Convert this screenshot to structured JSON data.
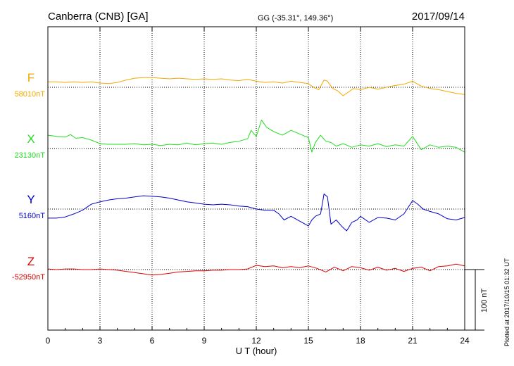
{
  "header": {
    "station": "Canberra (CNB)  [GA]",
    "coords": "GG (-35.31°, 149.36°)",
    "date": "2017/09/14"
  },
  "footer": {
    "plotted": "Plotted at 2017/10/15 01:32 UT"
  },
  "chart_data": {
    "type": "line",
    "title": "",
    "xlabel": "U T (hour)",
    "ylabel": "",
    "xlim": [
      0,
      24
    ],
    "xticks": [
      0,
      3,
      6,
      9,
      12,
      15,
      18,
      21,
      24
    ],
    "xtick_labels": [
      "0",
      "3",
      "6",
      "9",
      "12",
      "15",
      "18",
      "21",
      "24"
    ],
    "grid": true,
    "scale_bar": {
      "label": "100 nT",
      "value_nT": 100
    },
    "series": [
      {
        "name": "F",
        "baseline_label": "58010nT",
        "baseline_nT": 58010,
        "color": "#f5a800",
        "x": [
          0,
          0.5,
          1,
          1.5,
          2,
          2.5,
          3,
          3.5,
          4,
          4.5,
          5,
          5.5,
          6,
          6.5,
          7,
          7.5,
          8,
          8.5,
          9,
          9.5,
          10,
          10.5,
          11,
          11.5,
          12,
          12.5,
          13,
          13.5,
          14,
          14.5,
          15,
          15.3,
          15.6,
          15.9,
          16.1,
          16.4,
          16.7,
          17,
          17.3,
          17.6,
          18,
          18.5,
          19,
          19.5,
          20,
          20.5,
          21,
          21.5,
          22,
          22.5,
          23,
          23.5,
          24
        ],
        "y": [
          9,
          9,
          8,
          9,
          8,
          9,
          7,
          6,
          8,
          12,
          15,
          16,
          16,
          15,
          14,
          15,
          14,
          13,
          14,
          13,
          14,
          12,
          11,
          13,
          10,
          8,
          9,
          7,
          10,
          8,
          6,
          0,
          -4,
          12,
          10,
          -2,
          -6,
          -14,
          -8,
          -2,
          -4,
          0,
          -3,
          0,
          3,
          5,
          10,
          2,
          -2,
          -4,
          -7,
          -10,
          -12
        ]
      },
      {
        "name": "X",
        "baseline_label": "23130nT",
        "baseline_nT": 23130,
        "color": "#22dd22",
        "x": [
          0,
          0.5,
          1,
          1.3,
          1.6,
          2,
          2.5,
          3,
          3.5,
          4,
          4.5,
          5,
          5.5,
          6,
          6.5,
          7,
          7.5,
          8,
          8.5,
          9,
          9.5,
          10,
          10.5,
          11,
          11.5,
          11.7,
          12,
          12.3,
          12.6,
          13,
          13.5,
          14,
          14.5,
          15,
          15.2,
          15.4,
          15.7,
          16,
          16.3,
          16.6,
          17,
          17.5,
          18,
          18.5,
          19,
          19.5,
          20,
          20.5,
          21,
          21.5,
          22,
          22.5,
          23,
          23.5,
          24
        ],
        "y": [
          22,
          20,
          19,
          23,
          17,
          18,
          14,
          8,
          7,
          7,
          7,
          8,
          6,
          7,
          5,
          7,
          6,
          9,
          6,
          8,
          9,
          7,
          10,
          12,
          16,
          30,
          20,
          47,
          35,
          28,
          22,
          30,
          24,
          18,
          -6,
          10,
          22,
          12,
          10,
          4,
          8,
          2,
          6,
          4,
          8,
          3,
          6,
          4,
          20,
          -2,
          6,
          2,
          4,
          2,
          -6
        ]
      },
      {
        "name": "Y",
        "baseline_label": "5160nT",
        "baseline_nT": 5160,
        "color": "#0000cc",
        "x": [
          0,
          0.5,
          1,
          1.5,
          2,
          2.5,
          3,
          3.5,
          4,
          4.5,
          5,
          5.5,
          6,
          6.5,
          7,
          7.5,
          8,
          8.5,
          9,
          9.5,
          10,
          10.5,
          11,
          11.5,
          12,
          12.5,
          13,
          13.3,
          13.6,
          14,
          14.5,
          15,
          15.2,
          15.4,
          15.7,
          15.9,
          16.1,
          16.3,
          16.6,
          16.9,
          17.2,
          17.5,
          17.8,
          18,
          18.5,
          19,
          19.5,
          20,
          20.5,
          21,
          21.3,
          21.6,
          22,
          22.5,
          23,
          23.5,
          24
        ],
        "y": [
          -15,
          -15,
          -13,
          -8,
          -2,
          8,
          12,
          15,
          17,
          18,
          20,
          22,
          21,
          20,
          18,
          15,
          12,
          10,
          8,
          7,
          8,
          7,
          5,
          4,
          0,
          -2,
          -2,
          -8,
          -18,
          -12,
          -20,
          -28,
          -18,
          -12,
          -8,
          25,
          20,
          -25,
          -18,
          -28,
          -36,
          -22,
          -18,
          -12,
          -22,
          -14,
          -15,
          -18,
          -8,
          14,
          8,
          0,
          -4,
          -8,
          -16,
          -18,
          -14
        ]
      },
      {
        "name": "Z",
        "baseline_label": "-52950nT",
        "baseline_nT": -52950,
        "color": "#dd0000",
        "x": [
          0,
          0.5,
          1,
          1.5,
          2,
          2.5,
          3,
          3.5,
          4,
          4.5,
          5,
          5.5,
          6,
          6.5,
          7,
          7.5,
          8,
          8.5,
          9,
          9.5,
          10,
          10.5,
          11,
          11.5,
          12,
          12.5,
          13,
          13.5,
          14,
          14.5,
          15,
          15.5,
          16,
          16.5,
          17,
          17.5,
          18,
          18.5,
          19,
          19.5,
          20,
          20.5,
          21,
          21.5,
          22,
          22.5,
          23,
          23.5,
          24
        ],
        "y": [
          1,
          0,
          1,
          1,
          0,
          0,
          1,
          0,
          -1,
          -3,
          -5,
          -7,
          -9,
          -8,
          -6,
          -4,
          -3,
          -2,
          -2,
          -1,
          -1,
          0,
          0,
          1,
          7,
          5,
          6,
          3,
          5,
          3,
          6,
          2,
          -4,
          4,
          -2,
          5,
          3,
          -1,
          4,
          -1,
          2,
          -3,
          2,
          4,
          -2,
          5,
          6,
          9,
          6
        ]
      }
    ]
  },
  "colors": {
    "axes": "#000000",
    "grid": "#000000",
    "background": "#ffffff"
  }
}
